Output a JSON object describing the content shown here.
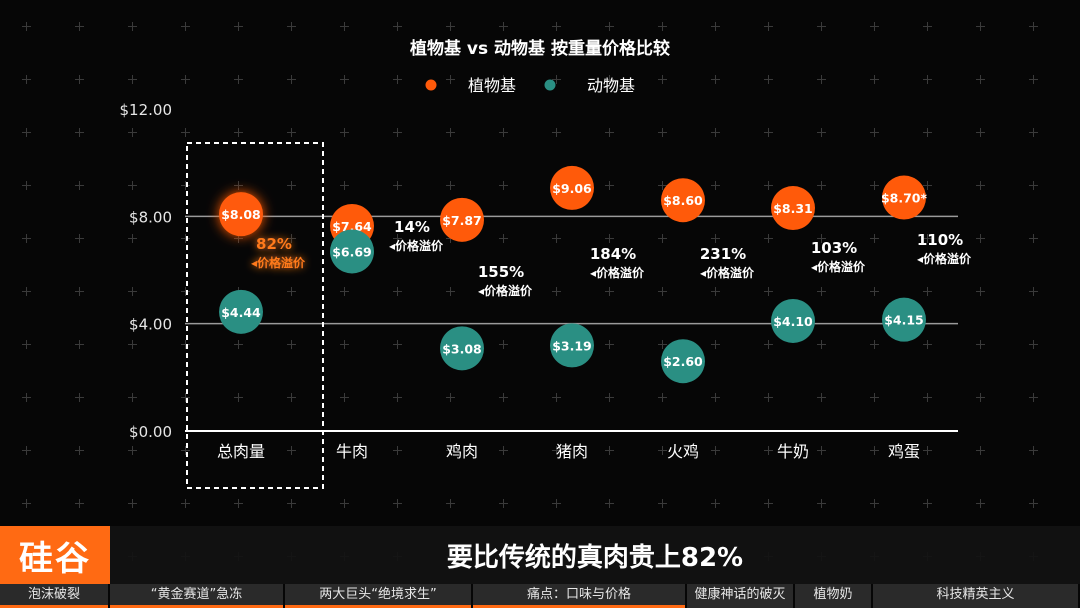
{
  "chart_data": {
    "type": "scatter",
    "title": "植物基 vs 动物基 按重量价格比较",
    "legend": {
      "placement": "top-center"
    },
    "categories": [
      "总肉量",
      "牛肉",
      "鸡肉",
      "猪肉",
      "火鸡",
      "牛奶",
      "鸡蛋"
    ],
    "ylim": [
      0,
      12
    ],
    "yticks": [
      "$0.00",
      "$4.00",
      "$8.00",
      "$12.00"
    ],
    "ytick_values": [
      0,
      4,
      8,
      12
    ],
    "gridlines": [
      4,
      8
    ],
    "series": [
      {
        "name": "植物基",
        "color": "#ff5a0a",
        "values": [
          8.08,
          7.64,
          7.87,
          9.06,
          8.6,
          8.31,
          8.7
        ],
        "labels": [
          "$8.08",
          "$7.64",
          "$7.87",
          "$9.06",
          "$8.60",
          "$8.31",
          "$8.70*"
        ]
      },
      {
        "name": "动物基",
        "color": "#2a8f83",
        "values": [
          4.44,
          6.69,
          3.08,
          3.19,
          2.6,
          4.1,
          4.15
        ],
        "labels": [
          "$4.44",
          "$6.69",
          "$3.08",
          "$3.19",
          "$2.60",
          "$4.10",
          "$4.15"
        ]
      }
    ],
    "premium": {
      "percent": [
        "82%",
        "14%",
        "155%",
        "184%",
        "231%",
        "103%",
        "110%"
      ],
      "label": "价格溢价",
      "arrow": "◂"
    },
    "highlight_category": "总肉量"
  },
  "caption": {
    "logo": "硅谷",
    "text": "要比传统的真肉贵上82%"
  },
  "chapters": [
    {
      "label": "泡沫破裂",
      "active": true
    },
    {
      "label": "“黄金赛道”急冻",
      "active": true
    },
    {
      "label": "两大巨头“绝境求生”",
      "active": true
    },
    {
      "label": "痛点：口味与价格",
      "active": true
    },
    {
      "label": "健康神话的破灭",
      "active": false
    },
    {
      "label": "植物奶",
      "active": false
    },
    {
      "label": "科技精英主义",
      "active": false
    }
  ]
}
